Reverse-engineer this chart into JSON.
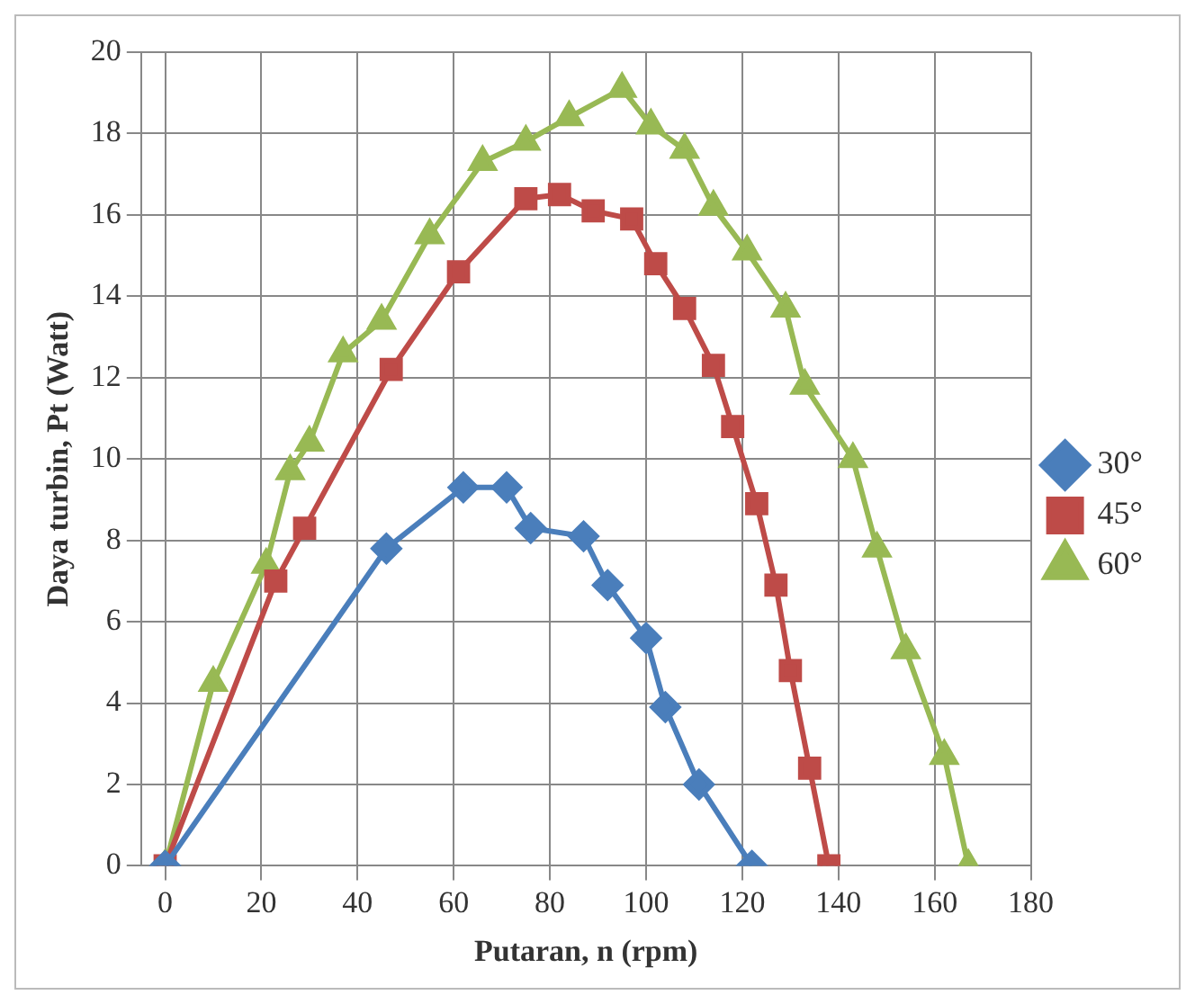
{
  "chart_data": {
    "type": "line",
    "xlabel": "Putaran, n (rpm)",
    "ylabel": "Daya turbin, Pt (Watt)",
    "xlim": [
      -5,
      180
    ],
    "xticks": [
      0,
      20,
      40,
      60,
      80,
      100,
      120,
      140,
      160,
      180
    ],
    "ylim": [
      0,
      20
    ],
    "yticks": [
      0,
      2,
      4,
      6,
      8,
      10,
      12,
      14,
      16,
      18,
      20
    ],
    "grid": true,
    "legend": "right",
    "series": [
      {
        "name": "30°",
        "color": "#4a7ebb",
        "marker": "diamond",
        "x": [
          0,
          46,
          62,
          71,
          76,
          87,
          92,
          100,
          104,
          111,
          122
        ],
        "values": [
          0,
          7.8,
          9.3,
          9.3,
          8.3,
          8.1,
          6.9,
          5.6,
          3.9,
          2.0,
          0
        ]
      },
      {
        "name": "45°",
        "color": "#be4b48",
        "marker": "square",
        "x": [
          0,
          23,
          29,
          47,
          61,
          75,
          82,
          89,
          97,
          102,
          108,
          114,
          118,
          123,
          127,
          130,
          134,
          138
        ],
        "values": [
          0,
          7.0,
          8.3,
          12.2,
          14.6,
          16.4,
          16.5,
          16.1,
          15.9,
          14.8,
          13.7,
          12.3,
          10.8,
          8.9,
          6.9,
          4.8,
          2.4,
          0
        ]
      },
      {
        "name": "60°",
        "color": "#98b954",
        "marker": "triangle",
        "x": [
          0,
          10,
          21,
          26,
          30,
          37,
          45,
          55,
          66,
          75,
          84,
          95,
          101,
          108,
          114,
          121,
          129,
          133,
          143,
          148,
          154,
          162,
          167
        ],
        "values": [
          0,
          4.5,
          7.4,
          9.7,
          10.4,
          12.6,
          13.4,
          15.5,
          17.3,
          17.8,
          18.4,
          19.1,
          18.2,
          17.6,
          16.2,
          15.1,
          13.7,
          11.8,
          10.0,
          7.8,
          5.3,
          2.7,
          0
        ]
      }
    ]
  }
}
